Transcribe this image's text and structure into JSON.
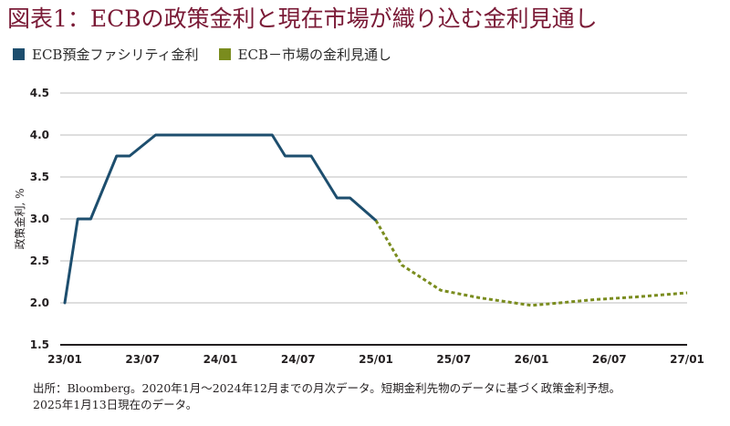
{
  "title": "図表1：ECBの政策金利と現在市場が織り込む金利見通し",
  "legend": [
    {
      "label": "ECB預金ファシリティ金利",
      "color": "#1d4e6e"
    },
    {
      "label": "ECB－市場の金利見通し",
      "color": "#7a8c1e"
    }
  ],
  "source_line1": "出所：Bloomberg。2020年1月～2024年12月までの月次データ。短期金利先物のデータに基づく政策金利予想。",
  "source_line2": "2025年1月13日現在のデータ。",
  "chart_data": {
    "type": "line",
    "ylabel": "政策金利, %",
    "ylim": [
      1.5,
      4.5
    ],
    "yticks": [
      "1.5",
      "2.0",
      "2.5",
      "3.0",
      "3.5",
      "4.0",
      "4.5"
    ],
    "xlim": [
      "2023-01",
      "2027-01"
    ],
    "xticks": [
      {
        "label": "23/01",
        "date": "2023-01"
      },
      {
        "label": "23/07",
        "date": "2023-07"
      },
      {
        "label": "24/01",
        "date": "2024-01"
      },
      {
        "label": "24/07",
        "date": "2024-07"
      },
      {
        "label": "25/01",
        "date": "2025-01"
      },
      {
        "label": "25/07",
        "date": "2025-07"
      },
      {
        "label": "26/01",
        "date": "2026-01"
      },
      {
        "label": "26/07",
        "date": "2026-07"
      },
      {
        "label": "27/01",
        "date": "2027-01"
      }
    ],
    "grid": true,
    "legend_position": "top-left",
    "series": [
      {
        "name": "ECB預金ファシリティ金利",
        "color": "#1d4e6e",
        "style": "solid",
        "points": [
          {
            "x": "2023-01",
            "y": 2.0
          },
          {
            "x": "2023-02",
            "y": 3.0
          },
          {
            "x": "2023-03",
            "y": 3.0
          },
          {
            "x": "2023-05",
            "y": 3.75
          },
          {
            "x": "2023-06",
            "y": 3.75
          },
          {
            "x": "2023-08",
            "y": 4.0
          },
          {
            "x": "2024-05",
            "y": 4.0
          },
          {
            "x": "2024-06",
            "y": 3.75
          },
          {
            "x": "2024-08",
            "y": 3.75
          },
          {
            "x": "2024-10",
            "y": 3.25
          },
          {
            "x": "2024-11",
            "y": 3.25
          },
          {
            "x": "2025-01",
            "y": 2.98
          }
        ]
      },
      {
        "name": "ECB－市場の金利見通し",
        "color": "#7a8c1e",
        "style": "dotted",
        "points": [
          {
            "x": "2025-01",
            "y": 2.98
          },
          {
            "x": "2025-03",
            "y": 2.45
          },
          {
            "x": "2025-06",
            "y": 2.15
          },
          {
            "x": "2025-09",
            "y": 2.06
          },
          {
            "x": "2026-01",
            "y": 1.97
          },
          {
            "x": "2026-06",
            "y": 2.04
          },
          {
            "x": "2026-09",
            "y": 2.07
          },
          {
            "x": "2027-01",
            "y": 2.12
          }
        ]
      }
    ]
  }
}
